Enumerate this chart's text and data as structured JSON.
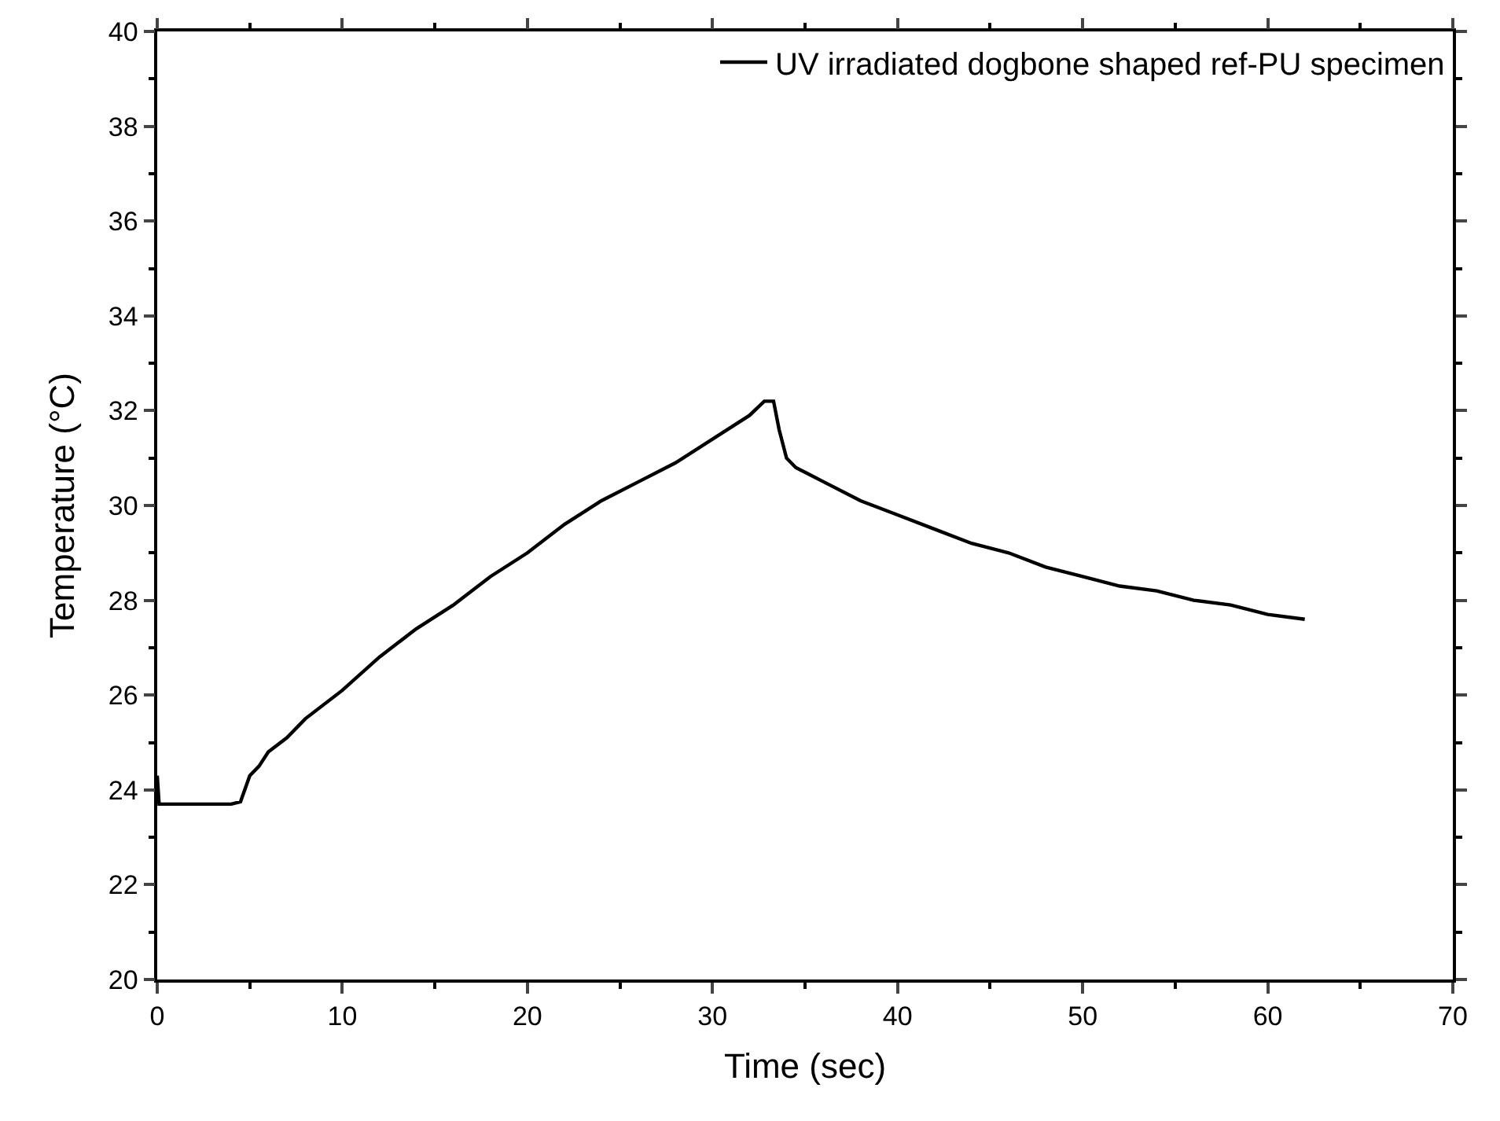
{
  "chart_data": {
    "type": "line",
    "xlabel": "Time (sec)",
    "ylabel": "Temperature (°C)",
    "xlim": [
      0,
      70
    ],
    "ylim": [
      20,
      40
    ],
    "xticks": [
      0,
      {
        "value": 5,
        "label": null
      },
      10,
      {
        "value": 15,
        "label": null
      },
      20,
      {
        "value": 25,
        "label": null
      },
      30,
      {
        "value": 35,
        "label": null
      },
      40,
      {
        "value": 45,
        "label": null
      },
      50,
      {
        "value": 55,
        "label": null
      },
      60,
      {
        "value": 65,
        "label": null
      },
      70
    ],
    "yticks": [
      20,
      {
        "value": 21,
        "label": null
      },
      22,
      {
        "value": 23,
        "label": null
      },
      24,
      {
        "value": 25,
        "label": null
      },
      26,
      {
        "value": 27,
        "label": null
      },
      28,
      {
        "value": 29,
        "label": null
      },
      30,
      {
        "value": 31,
        "label": null
      },
      32,
      {
        "value": 33,
        "label": null
      },
      34,
      {
        "value": 35,
        "label": null
      },
      36,
      {
        "value": 37,
        "label": null
      },
      38,
      {
        "value": 39,
        "label": null
      },
      40
    ],
    "legend": "top right",
    "marker": "none",
    "line_style": "solid",
    "series": [
      {
        "name": "UV irradiated dogbone shaped ref-PU specimen",
        "color": "#000000",
        "x": [
          0,
          0.1,
          0.3,
          1,
          2,
          3,
          4,
          4.5,
          5,
          5.5,
          6,
          7,
          8,
          10,
          12,
          14,
          16,
          18,
          20,
          22,
          24,
          26,
          28,
          30,
          32,
          32.8,
          33.3,
          33.6,
          34,
          34.5,
          35,
          36,
          38,
          40,
          42,
          44,
          46,
          48,
          50,
          52,
          54,
          56,
          58,
          60,
          62
        ],
        "values": [
          24.3,
          23.7,
          23.7,
          23.7,
          23.7,
          23.7,
          23.7,
          23.75,
          24.3,
          24.5,
          24.8,
          25.1,
          25.5,
          26.1,
          26.8,
          27.4,
          27.9,
          28.5,
          29.0,
          29.6,
          30.1,
          30.5,
          30.9,
          31.4,
          31.9,
          32.2,
          32.2,
          31.6,
          31.0,
          30.8,
          30.7,
          30.5,
          30.1,
          29.8,
          29.5,
          29.2,
          29.0,
          28.7,
          28.5,
          28.3,
          28.2,
          28.0,
          27.9,
          27.7,
          27.6
        ]
      }
    ]
  }
}
